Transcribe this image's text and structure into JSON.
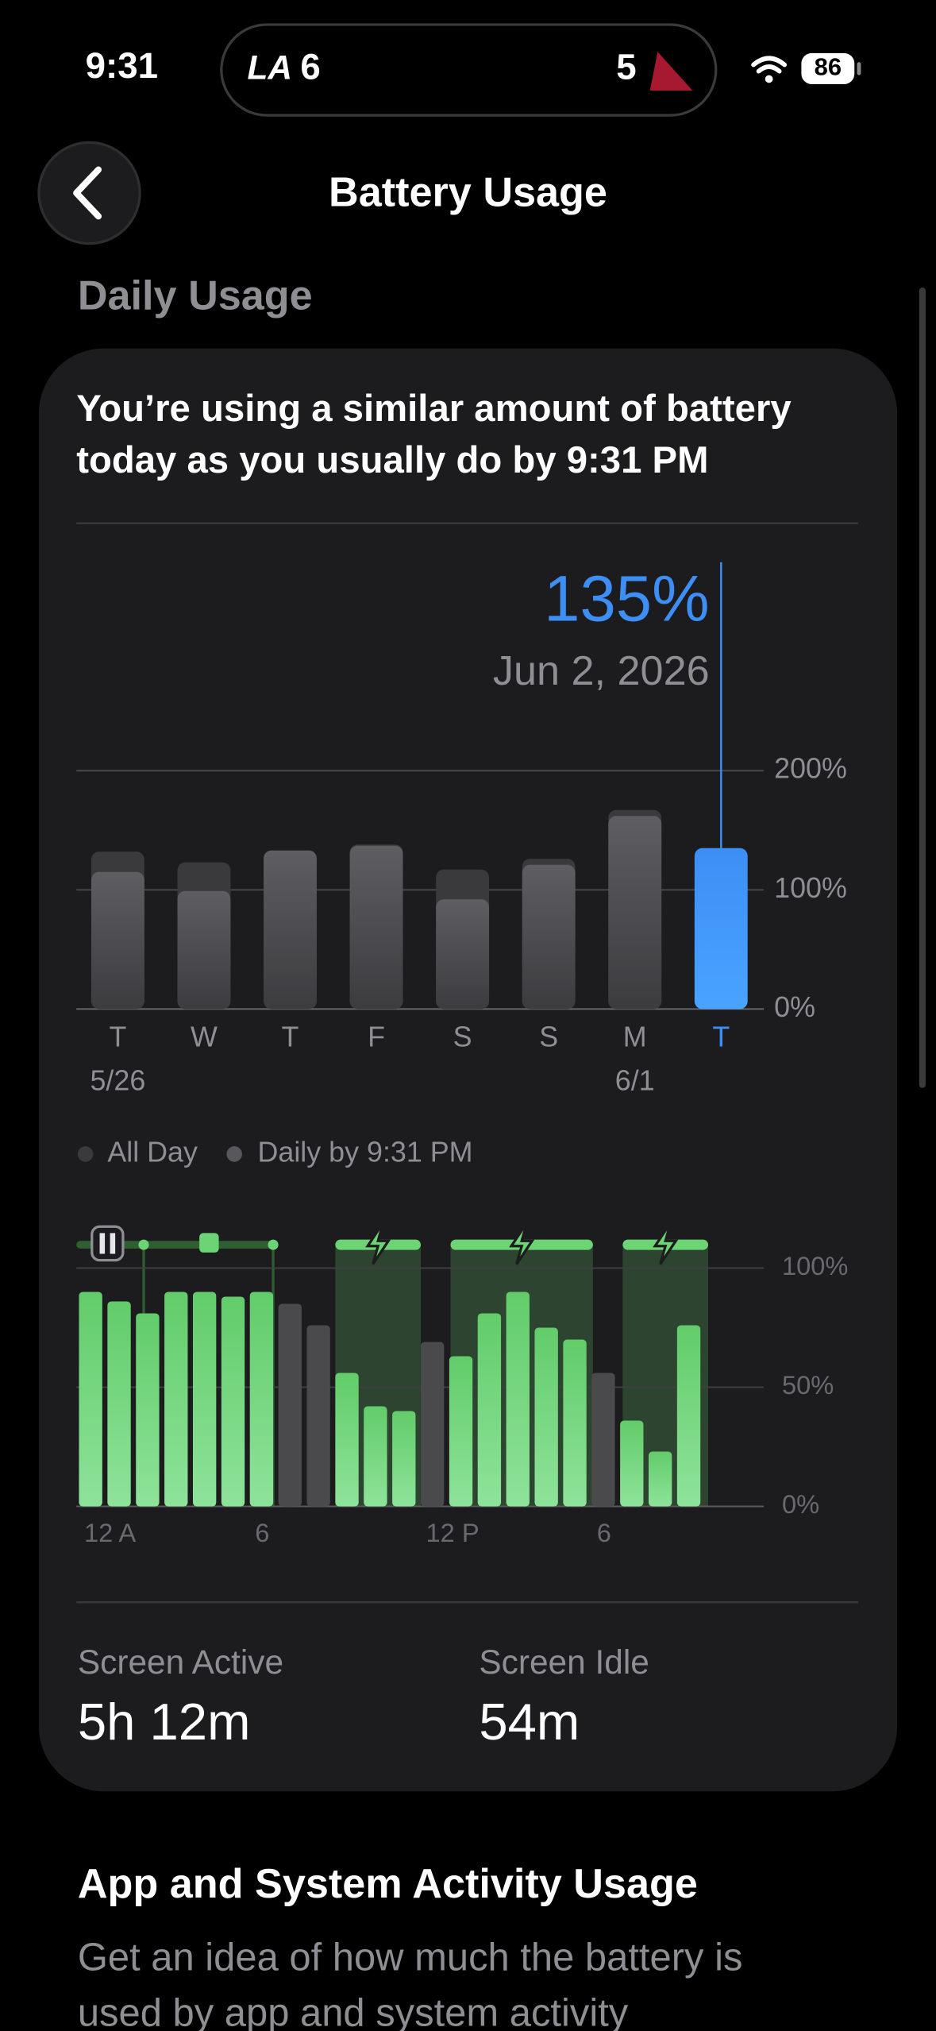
{
  "status_bar": {
    "time": "9:31",
    "home_team": "LA",
    "home_score": "6",
    "away_score": "5",
    "battery": "86"
  },
  "header": {
    "title": "Battery Usage"
  },
  "section": "Daily Usage",
  "card": {
    "message": "You’re using a similar amount of battery today as you usually do by 9:31 PM"
  },
  "chart_data": [
    {
      "type": "bar",
      "categories": [
        "T",
        "W",
        "T",
        "F",
        "S",
        "S",
        "M",
        "T"
      ],
      "dates": [
        "5/26",
        null,
        null,
        null,
        null,
        null,
        "6/1",
        null
      ],
      "series": [
        {
          "name": "All Day",
          "color": "#3a3a3c",
          "values": [
            132,
            123,
            133,
            138,
            117,
            126,
            167,
            null
          ]
        },
        {
          "name": "Daily by 9:31 PM",
          "color": "#58585c",
          "colors": [
            "#58585c",
            "#58585c",
            "#58585c",
            "#58585c",
            "#58585c",
            "#58585c",
            "#58585c",
            "#3d8ef5"
          ],
          "values": [
            115,
            99,
            133,
            137,
            92,
            121,
            162,
            135
          ],
          "value_labels": [
            null,
            null,
            null,
            null,
            null,
            null,
            null,
            "135%"
          ]
        }
      ],
      "annotation": "Jun 2, 2026",
      "ylim": [
        0,
        200
      ],
      "yticks": [
        {
          "value": 0,
          "label": "0%"
        },
        {
          "value": 100,
          "label": "100%"
        },
        {
          "value": 200,
          "label": "200%"
        }
      ],
      "grid": true
    },
    {
      "type": "bar",
      "categories": [
        "12 A",
        null,
        null,
        null,
        null,
        null,
        "6",
        null,
        null,
        null,
        null,
        null,
        "12 P",
        null,
        null,
        null,
        null,
        null,
        "6",
        null,
        null,
        null
      ],
      "values": [
        90,
        86,
        81,
        90,
        90,
        88,
        90,
        85,
        76,
        56,
        42,
        40,
        69,
        63,
        81,
        90,
        75,
        70,
        56,
        36,
        23,
        76
      ],
      "colors": [
        "#6cd474",
        "#6cd474",
        "#6cd474",
        "#6cd474",
        "#6cd474",
        "#6cd474",
        "#6cd474",
        "#4a4a4c",
        "#4a4a4c",
        "#6cd474",
        "#6cd474",
        "#6cd474",
        "#4a4a4c",
        "#6cd474",
        "#6cd474",
        "#6cd474",
        "#6cd474",
        "#6cd474",
        "#4a4a4c",
        "#6cd474",
        "#6cd474",
        "#6cd474"
      ],
      "ylim": [
        0,
        100
      ],
      "yticks": [
        {
          "value": 0,
          "label": "0%"
        },
        {
          "value": 50,
          "label": "50%"
        },
        {
          "value": 100,
          "label": "100%"
        }
      ],
      "grid": true
    }
  ],
  "stats": [
    {
      "label": "Screen Active",
      "value": "5h 12m"
    },
    {
      "label": "Screen Idle",
      "value": "54m"
    }
  ],
  "activity": {
    "title": "App and System Activity Usage",
    "text": "Get an idea of how much the battery is used by app and system activity"
  }
}
